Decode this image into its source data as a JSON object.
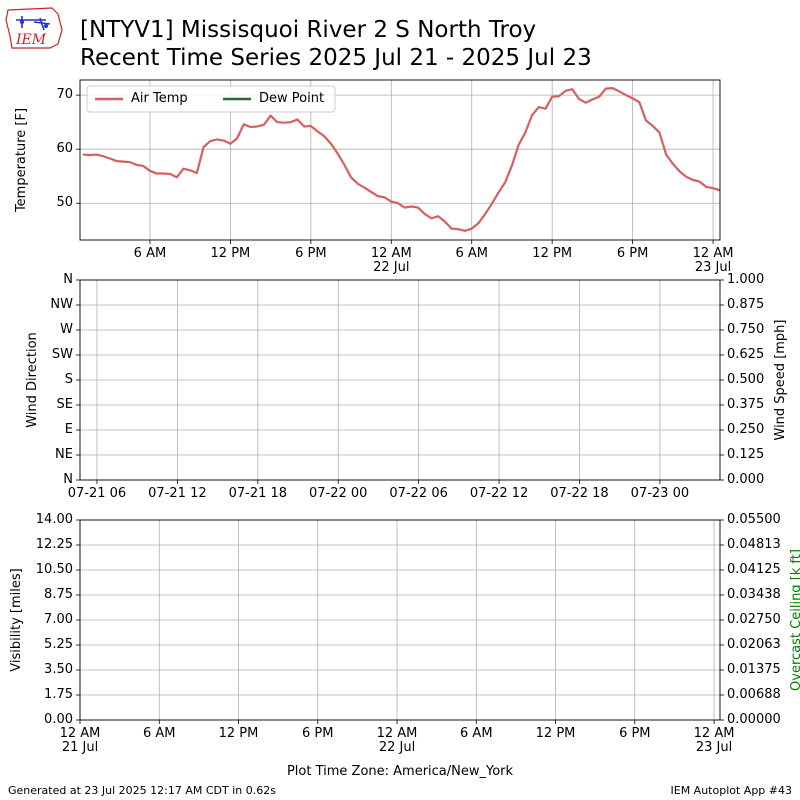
{
  "logo_text": "IEM",
  "footer": {
    "left": "Generated at 23 Jul 2025 12:17 AM CDT in 0.62s",
    "right": "IEM Autoplot App #43"
  },
  "chart_data": [
    {
      "type": "line",
      "title": [
        "[NTYV1] Missisquoi River 2 S North Troy",
        "Recent Time Series 2025 Jul 21 - 2025 Jul 23"
      ],
      "ylabel": "Temperature [F]",
      "xlim": [
        "07-21 00:47",
        "07-23 00:31"
      ],
      "ylim": [
        43.2,
        72.8
      ],
      "yticks": [
        50,
        60,
        70
      ],
      "xticks": [
        {
          "value": "07-21 06:00",
          "label": "6 AM"
        },
        {
          "value": "07-21 12:00",
          "label": "12 PM"
        },
        {
          "value": "07-21 18:00",
          "label": "6 PM"
        },
        {
          "value": "07-22 00:00",
          "label": "12 AM\n22 Jul"
        },
        {
          "value": "07-22 06:00",
          "label": "6 AM"
        },
        {
          "value": "07-22 12:00",
          "label": "12 PM"
        },
        {
          "value": "07-22 18:00",
          "label": "6 PM"
        },
        {
          "value": "07-23 00:00",
          "label": "12 AM\n23 Jul"
        }
      ],
      "grid": true,
      "legend": "upper left",
      "x": [
        "07-21 01:00",
        "07-21 01:30",
        "07-21 02:00",
        "07-21 02:30",
        "07-21 03:00",
        "07-21 03:30",
        "07-21 04:00",
        "07-21 04:30",
        "07-21 05:00",
        "07-21 05:30",
        "07-21 06:00",
        "07-21 06:30",
        "07-21 07:00",
        "07-21 07:30",
        "07-21 08:00",
        "07-21 08:30",
        "07-21 09:00",
        "07-21 09:30",
        "07-21 10:00",
        "07-21 10:30",
        "07-21 11:00",
        "07-21 11:30",
        "07-21 12:00",
        "07-21 12:30",
        "07-21 13:00",
        "07-21 13:30",
        "07-21 14:00",
        "07-21 14:30",
        "07-21 15:00",
        "07-21 15:30",
        "07-21 16:00",
        "07-21 16:30",
        "07-21 17:00",
        "07-21 17:30",
        "07-21 18:00",
        "07-21 18:30",
        "07-21 19:00",
        "07-21 19:30",
        "07-21 20:00",
        "07-21 20:30",
        "07-21 21:00",
        "07-21 21:30",
        "07-21 22:00",
        "07-21 22:30",
        "07-21 23:00",
        "07-21 23:30",
        "07-22 00:00",
        "07-22 00:30",
        "07-22 01:00",
        "07-22 01:30",
        "07-22 02:00",
        "07-22 02:30",
        "07-22 03:00",
        "07-22 03:30",
        "07-22 04:00",
        "07-22 04:30",
        "07-22 05:00",
        "07-22 05:30",
        "07-22 06:00",
        "07-22 06:30",
        "07-22 07:00",
        "07-22 07:30",
        "07-22 08:00",
        "07-22 08:30",
        "07-22 09:00",
        "07-22 09:30",
        "07-22 10:00",
        "07-22 10:30",
        "07-22 11:00",
        "07-22 11:30",
        "07-22 12:00",
        "07-22 12:30",
        "07-22 13:00",
        "07-22 13:30",
        "07-22 14:00",
        "07-22 14:30",
        "07-22 15:00",
        "07-22 15:30",
        "07-22 16:00",
        "07-22 16:30",
        "07-22 17:00",
        "07-22 17:30",
        "07-22 18:00",
        "07-22 18:30",
        "07-22 19:00",
        "07-22 19:30",
        "07-22 20:00",
        "07-22 20:30",
        "07-22 21:00",
        "07-22 21:30",
        "07-22 22:00",
        "07-22 22:30",
        "07-22 23:00",
        "07-22 23:30",
        "07-23 00:00",
        "07-23 00:30"
      ],
      "series": [
        {
          "name": "Air Temp",
          "color": "#d65f5f",
          "values": [
            59.0,
            58.9,
            59.0,
            58.7,
            58.3,
            57.8,
            57.7,
            57.6,
            57.1,
            56.9,
            56.0,
            55.5,
            55.5,
            55.4,
            54.8,
            56.4,
            56.1,
            55.6,
            60.4,
            61.5,
            61.8,
            61.6,
            61.0,
            62.0,
            64.6,
            64.1,
            64.2,
            64.5,
            66.2,
            65.0,
            64.9,
            65.0,
            65.5,
            64.2,
            64.3,
            63.3,
            62.4,
            61.0,
            59.2,
            57.1,
            54.8,
            53.6,
            52.9,
            52.1,
            51.3,
            51.1,
            50.3,
            50.0,
            49.2,
            49.4,
            49.2,
            48.0,
            47.2,
            47.6,
            46.6,
            45.3,
            45.2,
            44.9,
            45.3,
            46.3,
            48.0,
            49.9,
            52.0,
            53.9,
            57.0,
            60.8,
            63.1,
            66.3,
            67.8,
            67.5,
            69.7,
            69.8,
            70.8,
            71.1,
            69.3,
            68.6,
            69.2,
            69.7,
            71.2,
            71.3,
            70.7,
            70.0,
            69.4,
            68.7,
            65.3,
            64.3,
            63.1,
            59.0,
            57.3,
            55.9,
            54.9,
            54.3,
            54.0,
            53.0,
            52.8,
            52.4
          ]
        },
        {
          "name": "Dew Point",
          "color": "#2e6b30",
          "values": [
            null,
            null,
            null,
            null,
            null,
            null,
            null,
            null,
            null,
            null,
            null,
            null,
            null,
            null,
            null,
            null,
            null,
            null,
            null,
            null,
            null,
            null,
            null,
            null,
            null,
            null,
            null,
            null,
            null,
            null,
            null,
            null,
            null,
            null,
            null,
            null,
            null,
            null,
            null,
            null,
            null,
            null,
            null,
            null,
            null,
            null,
            null,
            null,
            null,
            null,
            null,
            null,
            null,
            null,
            null,
            null,
            null,
            null,
            null,
            null,
            null,
            null,
            null,
            null,
            null,
            null,
            null,
            null,
            null,
            null,
            null,
            null,
            null,
            null,
            null,
            null,
            null,
            null,
            null,
            null,
            null,
            null,
            null,
            null,
            null,
            null,
            null,
            null,
            null,
            null,
            null,
            null,
            null,
            null,
            null,
            null
          ]
        }
      ]
    },
    {
      "type": "line",
      "ylabel": "Wind Direction",
      "y2label": "Wind Speed [mph]",
      "xlim": [
        "07-21 04:44",
        "07-23 04:29"
      ],
      "ylim": [
        0,
        360
      ],
      "yticks": [
        {
          "value": 0,
          "label": "N"
        },
        {
          "value": 45,
          "label": "NE"
        },
        {
          "value": 90,
          "label": "E"
        },
        {
          "value": 135,
          "label": "SE"
        },
        {
          "value": 180,
          "label": "S"
        },
        {
          "value": 225,
          "label": "SW"
        },
        {
          "value": 270,
          "label": "W"
        },
        {
          "value": 315,
          "label": "NW"
        },
        {
          "value": 360,
          "label": "N"
        }
      ],
      "y2lim": [
        0,
        1
      ],
      "y2ticks": [
        {
          "value": 0,
          "label": "0.000"
        },
        0.125,
        {
          "value": 0.25,
          "label": "0.250"
        },
        0.375,
        {
          "value": 0.5,
          "label": "0.500"
        },
        0.625,
        {
          "value": 0.75,
          "label": "0.750"
        },
        0.875,
        {
          "value": 1,
          "label": "1.000"
        }
      ],
      "xticks": [
        {
          "value": "07-21 06:00",
          "label": "07-21 06"
        },
        {
          "value": "07-21 12:00",
          "label": "07-21 12"
        },
        {
          "value": "07-21 18:00",
          "label": "07-21 18"
        },
        {
          "value": "07-22 00:00",
          "label": "07-22 00"
        },
        {
          "value": "07-22 06:00",
          "label": "07-22 06"
        },
        {
          "value": "07-22 12:00",
          "label": "07-22 12"
        },
        {
          "value": "07-22 18:00",
          "label": "07-22 18"
        },
        {
          "value": "07-23 00:00",
          "label": "07-23 00"
        }
      ],
      "grid": true
    },
    {
      "type": "line",
      "ylabel": "Visibility [miles]",
      "y2label": "Overcast Ceiling [k ft]",
      "y2label_color": "#008000",
      "xlabel": "Plot Time Zone: America/New_York",
      "xlim": [
        "07-21 00:00",
        "07-23 00:27"
      ],
      "ylim": [
        0,
        14
      ],
      "yticks": [
        {
          "value": 0,
          "label": "0.00"
        },
        1.75,
        {
          "value": 3.5,
          "label": "3.50"
        },
        5.25,
        {
          "value": 7,
          "label": "7.00"
        },
        8.75,
        {
          "value": 10.5,
          "label": "10.50"
        },
        12.25,
        {
          "value": 14,
          "label": "14.00"
        }
      ],
      "y2lim": [
        0,
        0.055
      ],
      "y2ticks": [
        {
          "value": 0,
          "label": "0.00000"
        },
        {
          "value": 0.006875,
          "label": "0.00688"
        },
        0.01375,
        {
          "value": 0.020625,
          "label": "0.02063"
        },
        {
          "value": 0.0275,
          "label": "0.02750"
        },
        {
          "value": 0.034375,
          "label": "0.03438"
        },
        0.04125,
        {
          "value": 0.048125,
          "label": "0.04813"
        },
        {
          "value": 0.055,
          "label": "0.05500"
        }
      ],
      "xticks": [
        {
          "value": "07-21 00:00",
          "label": "12 AM\n21 Jul"
        },
        {
          "value": "07-21 06:00",
          "label": "6 AM"
        },
        {
          "value": "07-21 12:00",
          "label": "12 PM"
        },
        {
          "value": "07-21 18:00",
          "label": "6 PM"
        },
        {
          "value": "07-22 00:00",
          "label": "12 AM\n22 Jul"
        },
        {
          "value": "07-22 06:00",
          "label": "6 AM"
        },
        {
          "value": "07-22 12:00",
          "label": "12 PM"
        },
        {
          "value": "07-22 18:00",
          "label": "6 PM"
        },
        {
          "value": "07-23 00:00",
          "label": "12 AM\n23 Jul"
        }
      ],
      "grid": true
    }
  ]
}
